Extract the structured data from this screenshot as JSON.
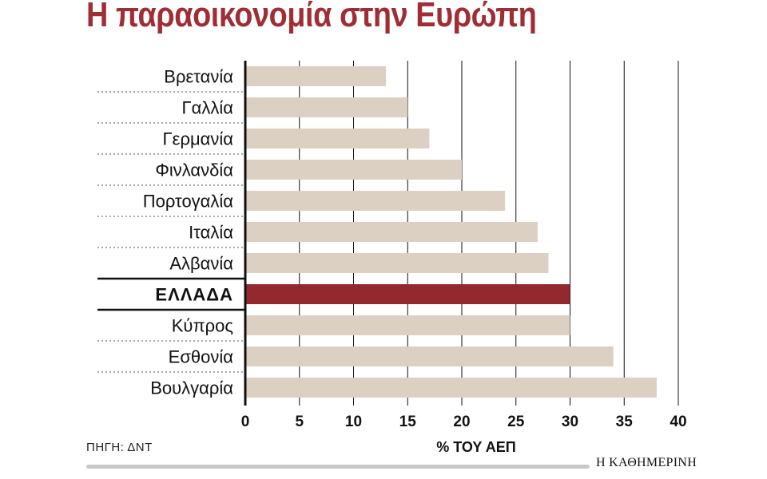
{
  "title": "Η παραοικονομία στην Ευρώπη",
  "source": "ΠΗΓΗ: ΔΝΤ",
  "publisher": "Η ΚΑΘΗΜΕΡΙΝΗ",
  "colors": {
    "bar": "#dcd0c3",
    "highlight": "#93292f",
    "title": "#a12d34",
    "grid": "#111111"
  },
  "chart_data": {
    "type": "bar",
    "orientation": "horizontal",
    "title": "Η παραοικονομία στην Ευρώπη",
    "xlabel": "% ΤΟΥ ΑΕΠ",
    "ylabel": "",
    "categories": [
      "Βρετανία",
      "Γαλλία",
      "Γερμανία",
      "Φινλανδία",
      "Πορτογαλία",
      "Ιταλία",
      "Αλβανία",
      "ΕΛΛΑΔΑ",
      "Κύπρος",
      "Εσθονία",
      "Βουλγαρία"
    ],
    "values": [
      13,
      15,
      17,
      20,
      24,
      27,
      28,
      30,
      30,
      34,
      38
    ],
    "highlight": "ΕΛΛΑΔΑ",
    "xlim": [
      0,
      40
    ],
    "ticks": [
      0,
      5,
      10,
      15,
      20,
      25,
      30,
      35,
      40
    ],
    "grid": "vertical"
  }
}
